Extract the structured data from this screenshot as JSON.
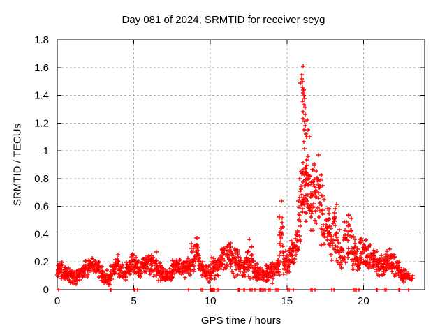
{
  "chart_data": {
    "type": "scatter",
    "title": "Day 081 of 2024, SRMTID for receiver seyg",
    "xlabel": "GPS time / hours",
    "ylabel": "SRMTID / TECUs",
    "xlim": [
      0,
      24
    ],
    "ylim": [
      0,
      1.8
    ],
    "xticks": [
      0,
      5,
      10,
      15,
      20
    ],
    "xtick_labels": [
      "0",
      "5",
      "10",
      "15",
      "20"
    ],
    "yticks": [
      0,
      0.2,
      0.4,
      0.6,
      0.8,
      1,
      1.2,
      1.4,
      1.6,
      1.8
    ],
    "ytick_labels": [
      "0",
      "0.2",
      "0.4",
      "0.6",
      "0.8",
      "1",
      "1.2",
      "1.4",
      "1.6",
      "1.8"
    ],
    "grid": true,
    "legend": "none",
    "marker": "plus",
    "marker_color": "#ff0000",
    "series_name": "SRMTID",
    "envelope_bins": {
      "comment": "scatter cloud envelope read off the plot: [hour_start, ymin_TECU, ymax_TECU, optional_count], bin width 0.25 h",
      "bin_width_hours": 0.25,
      "default_count": 17,
      "bins": [
        [
          0.0,
          0.05,
          0.22
        ],
        [
          0.25,
          0.06,
          0.2
        ],
        [
          0.5,
          0.05,
          0.18
        ],
        [
          0.75,
          0.04,
          0.16
        ],
        [
          1.0,
          0.03,
          0.14
        ],
        [
          1.25,
          0.05,
          0.16
        ],
        [
          1.5,
          0.06,
          0.19
        ],
        [
          1.75,
          0.08,
          0.22
        ],
        [
          2.0,
          0.1,
          0.25
        ],
        [
          2.25,
          0.1,
          0.24
        ],
        [
          2.5,
          0.08,
          0.22
        ],
        [
          2.75,
          0.05,
          0.18
        ],
        [
          3.0,
          0.03,
          0.14
        ],
        [
          3.25,
          0.02,
          0.12
        ],
        [
          3.5,
          0.04,
          0.2
        ],
        [
          3.75,
          0.1,
          0.28
        ],
        [
          4.0,
          0.06,
          0.2
        ],
        [
          4.25,
          0.04,
          0.17
        ],
        [
          4.5,
          0.08,
          0.22
        ],
        [
          4.75,
          0.1,
          0.26
        ],
        [
          5.0,
          0.1,
          0.24
        ],
        [
          5.25,
          0.08,
          0.21
        ],
        [
          5.5,
          0.1,
          0.24
        ],
        [
          5.75,
          0.12,
          0.26
        ],
        [
          6.0,
          0.1,
          0.26
        ],
        [
          6.25,
          0.08,
          0.28
        ],
        [
          6.5,
          0.06,
          0.22
        ],
        [
          6.75,
          0.05,
          0.18
        ],
        [
          7.0,
          0.04,
          0.16
        ],
        [
          7.25,
          0.05,
          0.18
        ],
        [
          7.5,
          0.08,
          0.22
        ],
        [
          7.75,
          0.1,
          0.24
        ],
        [
          8.0,
          0.08,
          0.22
        ],
        [
          8.25,
          0.08,
          0.24
        ],
        [
          8.5,
          0.08,
          0.26
        ],
        [
          8.75,
          0.1,
          0.34
        ],
        [
          9.0,
          0.12,
          0.4
        ],
        [
          9.25,
          0.08,
          0.26
        ],
        [
          9.5,
          0.05,
          0.2
        ],
        [
          9.75,
          0.04,
          0.2
        ],
        [
          10.0,
          0.06,
          0.24
        ],
        [
          10.25,
          0.08,
          0.28
        ],
        [
          10.5,
          0.1,
          0.3
        ],
        [
          10.75,
          0.12,
          0.34
        ],
        [
          11.0,
          0.12,
          0.37
        ],
        [
          11.25,
          0.1,
          0.36
        ],
        [
          11.5,
          0.08,
          0.33
        ],
        [
          11.75,
          0.08,
          0.3
        ],
        [
          12.0,
          0.06,
          0.26
        ],
        [
          12.25,
          0.08,
          0.34
        ],
        [
          12.5,
          0.06,
          0.43,
          18
        ],
        [
          12.75,
          0.05,
          0.24
        ],
        [
          13.0,
          0.04,
          0.2
        ],
        [
          13.25,
          0.04,
          0.17
        ],
        [
          13.5,
          0.04,
          0.18
        ],
        [
          13.75,
          0.05,
          0.2
        ],
        [
          14.0,
          0.04,
          0.22
        ],
        [
          14.25,
          0.06,
          0.28
        ],
        [
          14.5,
          0.12,
          0.68,
          20
        ],
        [
          14.75,
          0.08,
          0.3
        ],
        [
          15.0,
          0.1,
          0.32
        ],
        [
          15.25,
          0.14,
          0.38
        ],
        [
          15.5,
          0.2,
          0.48
        ],
        [
          15.75,
          0.3,
          0.9,
          22
        ],
        [
          16.0,
          0.45,
          1.08,
          26
        ],
        [
          16.25,
          0.45,
          1.05,
          24
        ],
        [
          16.5,
          0.4,
          0.98,
          22
        ],
        [
          16.75,
          0.38,
          0.95,
          20
        ],
        [
          17.0,
          0.35,
          1.02,
          20
        ],
        [
          17.25,
          0.28,
          0.8,
          18
        ],
        [
          17.5,
          0.22,
          0.62
        ],
        [
          17.75,
          0.18,
          0.5
        ],
        [
          18.0,
          0.22,
          0.68
        ],
        [
          18.25,
          0.15,
          0.45
        ],
        [
          18.5,
          0.12,
          0.4
        ],
        [
          18.75,
          0.18,
          0.55
        ],
        [
          19.0,
          0.15,
          0.6
        ],
        [
          19.25,
          0.12,
          0.4
        ],
        [
          19.5,
          0.1,
          0.35
        ],
        [
          19.75,
          0.12,
          0.38
        ],
        [
          20.0,
          0.14,
          0.38
        ],
        [
          20.25,
          0.12,
          0.35
        ],
        [
          20.5,
          0.1,
          0.3
        ],
        [
          20.75,
          0.08,
          0.28
        ],
        [
          21.0,
          0.08,
          0.26
        ],
        [
          21.25,
          0.1,
          0.3
        ],
        [
          21.5,
          0.12,
          0.33
        ],
        [
          21.75,
          0.1,
          0.32
        ],
        [
          22.0,
          0.08,
          0.25
        ],
        [
          22.25,
          0.06,
          0.2
        ],
        [
          22.5,
          0.05,
          0.16
        ],
        [
          22.75,
          0.05,
          0.14,
          12
        ],
        [
          23.0,
          0.05,
          0.12,
          6
        ]
      ]
    },
    "high_points": [
      [
        16.05,
        1.61
      ],
      [
        15.98,
        1.55
      ],
      [
        15.95,
        1.52
      ],
      [
        16.02,
        1.5
      ],
      [
        15.9,
        1.49
      ],
      [
        16.0,
        1.46
      ],
      [
        16.08,
        1.44
      ],
      [
        16.12,
        1.44
      ],
      [
        16.05,
        1.42
      ],
      [
        16.1,
        1.4
      ],
      [
        16.15,
        1.38
      ],
      [
        16.02,
        1.36
      ],
      [
        16.1,
        1.33
      ],
      [
        16.18,
        1.31
      ],
      [
        16.08,
        1.28
      ],
      [
        16.2,
        1.26
      ],
      [
        16.06,
        1.23
      ],
      [
        16.14,
        1.21
      ],
      [
        16.22,
        1.18
      ],
      [
        16.12,
        1.15
      ],
      [
        16.25,
        1.12
      ],
      [
        16.3,
        1.1
      ],
      [
        16.35,
        1.22
      ],
      [
        16.4,
        1.15
      ],
      [
        16.45,
        1.1
      ]
    ],
    "zero_points": [
      0.1,
      3.45,
      3.52,
      5.0,
      5.08,
      5.25,
      8.6,
      9.42,
      9.5,
      9.97,
      10.0,
      10.03,
      10.06,
      10.09,
      10.12,
      10.15,
      10.18,
      10.21,
      10.24,
      10.27,
      10.45,
      10.55,
      11.82,
      11.85,
      11.88,
      11.91,
      12.18,
      12.21,
      12.24,
      12.6,
      12.75,
      12.9,
      13.25,
      13.3,
      13.35,
      13.5,
      13.6,
      13.82,
      13.9,
      14.28,
      14.35,
      14.45,
      15.05,
      15.15,
      15.42,
      16.55,
      16.65,
      16.85,
      17.95,
      18.05,
      19.35,
      19.45,
      19.55,
      19.7,
      20.85,
      20.92,
      21.4,
      21.48,
      22.3,
      22.38,
      22.95
    ]
  },
  "colors": {
    "marker": "#ff0000",
    "grid": "#ababab",
    "axis": "#000000",
    "background": "#ffffff",
    "text": "#000000"
  }
}
